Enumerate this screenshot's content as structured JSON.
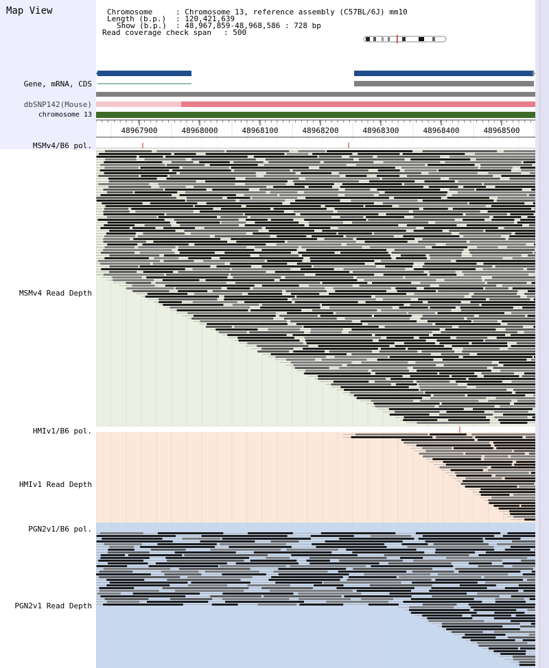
{
  "window": {
    "title": "Map View"
  },
  "header": {
    "chromosome_label": "Chromosome",
    "chromosome_value": ": Chromosome 13, reference assembly (C57BL/6J) mm10",
    "length_label": "Length (b.p.)",
    "length_value": ": 120,421,639",
    "show_label": "Show (b.p.)",
    "show_value": ": 48,967,859-48,968,586 : 728 bp",
    "coverage_label": "Read coverage check span",
    "coverage_value": ": 500"
  },
  "tracks": {
    "gene": {
      "label": "Gene, mRNA, CDS"
    },
    "dbsnp": {
      "label": "dbSNP142(Mouse)"
    },
    "chromosome": {
      "label": "chromosome 13"
    }
  },
  "ruler": {
    "ticks": [
      "48967900",
      "48968000",
      "48968100",
      "48968200",
      "48968300",
      "48968400",
      "48968500"
    ]
  },
  "sections": {
    "msmv4_pol": {
      "label": "MSMv4/B6 pol."
    },
    "msmv4_depth": {
      "label": "MSMv4 Read Depth"
    },
    "hmiv1_pol": {
      "label": "HMIv1/B6 pol."
    },
    "hmiv1_depth": {
      "label": "HMIv1 Read Depth"
    },
    "pgn2v1_pol": {
      "label": "PGN2v1/B6 pol."
    },
    "pgn2v1_depth": {
      "label": "PGN2v1 Read Depth"
    }
  },
  "colors": {
    "gene_blue": "#1f4e8c",
    "mrna_gray": "#808080",
    "dbsnp_pink": "#e87c88",
    "chromosome_green": "#3e6b2a",
    "msmv4_bg": "#ebf0e2",
    "hmiv1_bg": "#fbe8da",
    "pgn2v1_bg": "#c8d8ee",
    "pol_marker": "#d02020"
  }
}
